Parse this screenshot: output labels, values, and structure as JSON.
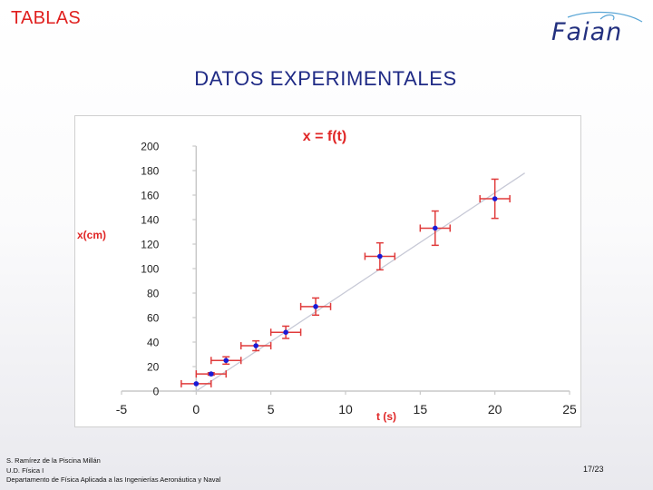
{
  "header": {
    "section_label": "TABLAS",
    "logo_text": "Faian"
  },
  "title": "DATOS EXPERIMENTALES",
  "colors": {
    "heading_red": "#e0201f",
    "title_blue": "#1f2a85",
    "point_blue": "#1a1ad6",
    "error_red": "#e03b3b",
    "fit_line": "#c7c9d6"
  },
  "chart_data": {
    "type": "scatter",
    "title": "x = f(t)",
    "xlabel": "t (s)",
    "ylabel": "x(cm)",
    "xlim": [
      -5,
      25
    ],
    "ylim": [
      0,
      200
    ],
    "x_ticks": [
      "-5",
      "0",
      "5",
      "10",
      "15",
      "20",
      "25"
    ],
    "y_ticks": [
      "0",
      "20",
      "40",
      "60",
      "80",
      "100",
      "120",
      "140",
      "160",
      "180",
      "200"
    ],
    "grid": false,
    "legend": "none",
    "series": [
      {
        "points": [
          {
            "x": 0,
            "y": 6,
            "xerr": 1,
            "yerr": 0
          },
          {
            "x": 1,
            "y": 14,
            "xerr": 1,
            "yerr": 1
          },
          {
            "x": 2,
            "y": 25,
            "xerr": 1,
            "yerr": 3
          },
          {
            "x": 4,
            "y": 37,
            "xerr": 1,
            "yerr": 4
          },
          {
            "x": 6,
            "y": 48,
            "xerr": 1,
            "yerr": 5
          },
          {
            "x": 8,
            "y": 69,
            "xerr": 1,
            "yerr": 7
          },
          {
            "x": 12.3,
            "y": 110,
            "xerr": 1,
            "yerr": 11
          },
          {
            "x": 16,
            "y": 133,
            "xerr": 1,
            "yerr": 14
          },
          {
            "x": 20,
            "y": 157,
            "xerr": 1,
            "yerr": 16
          }
        ]
      }
    ],
    "trendline": {
      "x_start": 0,
      "y_start": 0,
      "x_end": 22,
      "y_end": 178
    }
  },
  "footer": {
    "author": "S. Ramírez de la Piscina Millán",
    "unit": "U.D. Física I",
    "department": "Departamento de Física Aplicada a las Ingenierías Aeronáutica y Naval",
    "page": "17/23"
  }
}
